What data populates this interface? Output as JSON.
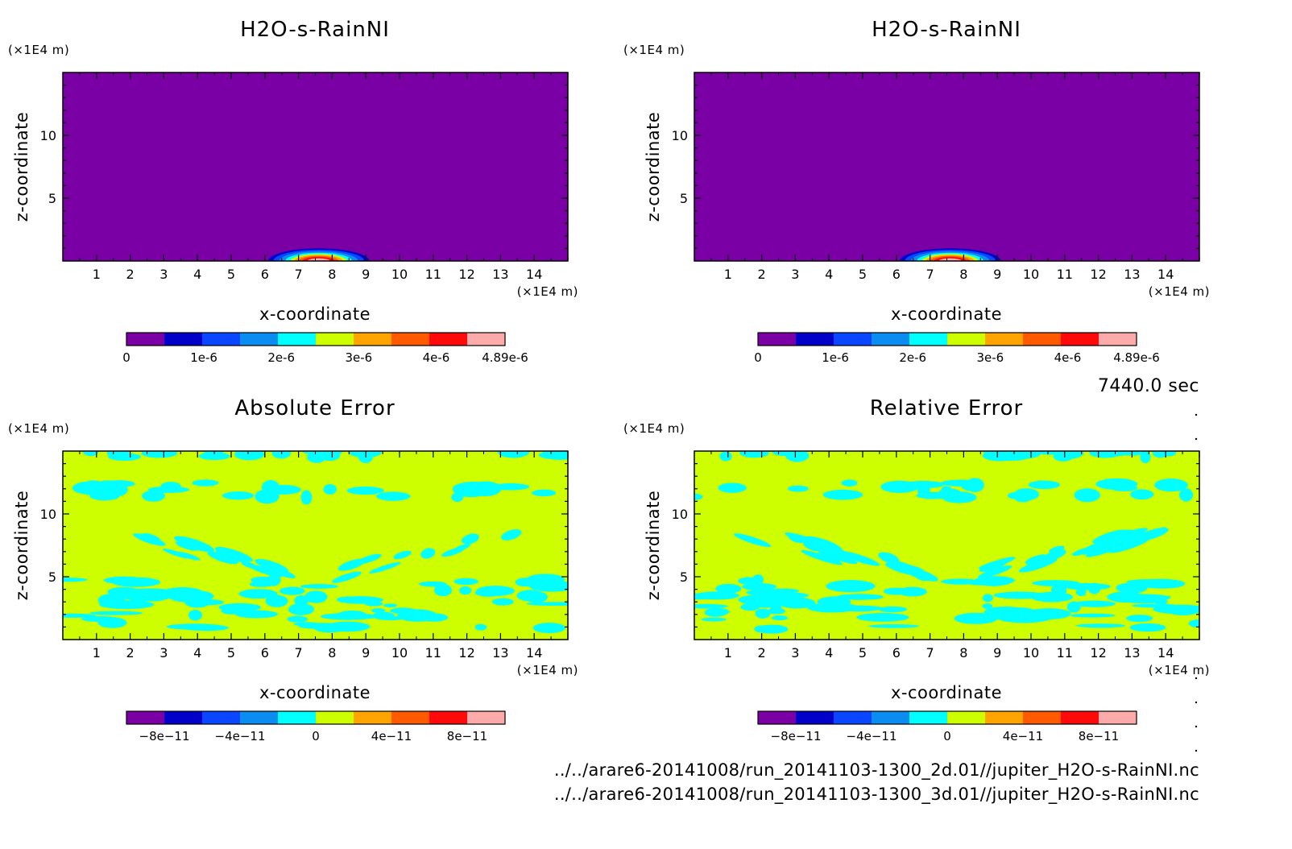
{
  "colormap": [
    "#7a00a6",
    "#0000c8",
    "#0a46ff",
    "#0a8cf0",
    "#00ffff",
    "#cdff00",
    "#ffa400",
    "#ff5a00",
    "#ff0a0a",
    "#ffaaaa"
  ],
  "timestamp": "7440.0 sec",
  "files": [
    "../../arare6-20141008/run_20141103-1300_2d.01//jupiter_H2O-s-RainNI.nc",
    "../../arare6-20141008/run_20141103-1300_3d.01//jupiter_H2O-s-RainNI.nc"
  ],
  "chart_data": [
    {
      "type": "heatmap",
      "title": "H2O-s-RainNI",
      "xlabel": "x-coordinate",
      "ylabel": "z-coordinate",
      "x_unit": "(×1E4 m)",
      "y_unit": "(×1E4 m)",
      "xlim": [
        0,
        15
      ],
      "ylim": [
        0,
        15
      ],
      "xticks": [
        "1",
        "2",
        "3",
        "4",
        "5",
        "6",
        "7",
        "8",
        "9",
        "10",
        "11",
        "12",
        "13",
        "14"
      ],
      "yticks": [
        "5",
        "10"
      ],
      "colorbar": {
        "min": 0,
        "max": 4.89e-06,
        "labels": [
          "0",
          "1e-6",
          "2e-6",
          "3e-6",
          "4e-6",
          "4.89e-6"
        ]
      },
      "background_value": 0,
      "feature": {
        "x_range": [
          6.0,
          9.0
        ],
        "z_max": 1.0,
        "peak_x": 7.6,
        "peak_value": 4.89e-06
      }
    },
    {
      "type": "heatmap",
      "title": "H2O-s-RainNI",
      "xlabel": "x-coordinate",
      "ylabel": "z-coordinate",
      "x_unit": "(×1E4 m)",
      "y_unit": "(×1E4 m)",
      "xlim": [
        0,
        15
      ],
      "ylim": [
        0,
        15
      ],
      "xticks": [
        "1",
        "2",
        "3",
        "4",
        "5",
        "6",
        "7",
        "8",
        "9",
        "10",
        "11",
        "12",
        "13",
        "14"
      ],
      "yticks": [
        "5",
        "10"
      ],
      "colorbar": {
        "min": 0,
        "max": 4.89e-06,
        "labels": [
          "0",
          "1e-6",
          "2e-6",
          "3e-6",
          "4e-6",
          "4.89e-6"
        ]
      },
      "background_value": 0,
      "feature": {
        "x_range": [
          6.0,
          9.0
        ],
        "z_max": 1.0,
        "peak_x": 7.6,
        "peak_value": 4.89e-06
      }
    },
    {
      "type": "heatmap",
      "title": "Absolute Error",
      "xlabel": "x-coordinate",
      "ylabel": "z-coordinate",
      "x_unit": "(×1E4 m)",
      "y_unit": "(×1E4 m)",
      "xlim": [
        0,
        15
      ],
      "ylim": [
        0,
        15
      ],
      "xticks": [
        "1",
        "2",
        "3",
        "4",
        "5",
        "6",
        "7",
        "8",
        "9",
        "10",
        "11",
        "12",
        "13",
        "14"
      ],
      "yticks": [
        "5",
        "10"
      ],
      "colorbar": {
        "min": -1e-10,
        "max": 1e-10,
        "labels": [
          "−8e−11",
          "−4e−11",
          "0",
          "4e−11",
          "8e−11"
        ]
      },
      "background_value": 0,
      "pattern": "scattered small negative patches near surface and near z=11-12"
    },
    {
      "type": "heatmap",
      "title": "Relative Error",
      "xlabel": "x-coordinate",
      "ylabel": "z-coordinate",
      "x_unit": "(×1E4 m)",
      "y_unit": "(×1E4 m)",
      "xlim": [
        0,
        15
      ],
      "ylim": [
        0,
        15
      ],
      "xticks": [
        "1",
        "2",
        "3",
        "4",
        "5",
        "6",
        "7",
        "8",
        "9",
        "10",
        "11",
        "12",
        "13",
        "14"
      ],
      "yticks": [
        "5",
        "10"
      ],
      "colorbar": {
        "min": -1e-10,
        "max": 1e-10,
        "labels": [
          "−8e−11",
          "−4e−11",
          "0",
          "4e−11",
          "8e−11"
        ]
      },
      "background_value": 0,
      "pattern": "scattered small negative patches near surface, diagonal streaks, and near z=11-12"
    }
  ]
}
